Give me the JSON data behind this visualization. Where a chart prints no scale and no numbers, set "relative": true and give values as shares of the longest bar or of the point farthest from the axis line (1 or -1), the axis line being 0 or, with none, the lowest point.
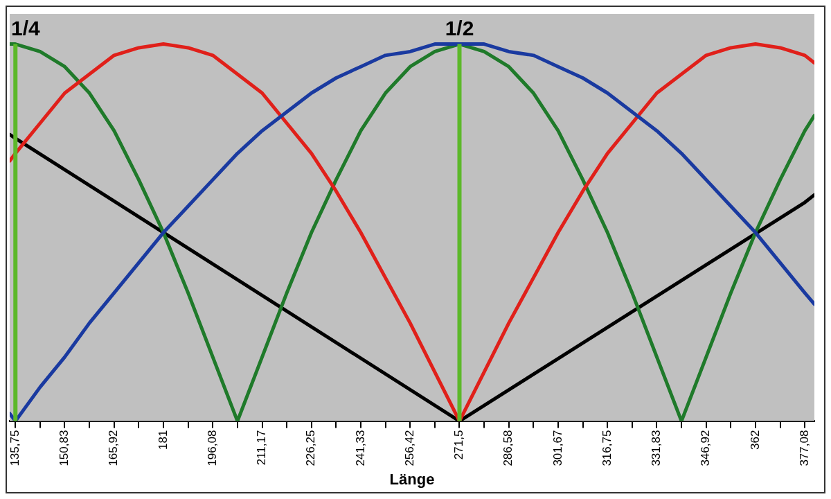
{
  "chart_data": {
    "type": "line",
    "xlabel": "Länge",
    "relative": true,
    "grid": false,
    "legend": false,
    "marker": "none",
    "line_style": "solid",
    "xlim": [
      134,
      380
    ],
    "xticks": [
      {
        "value": 135.75,
        "label": "135,75"
      },
      {
        "value": 143.29,
        "label": null
      },
      {
        "value": 150.83,
        "label": "150,83"
      },
      {
        "value": 158.37,
        "label": null
      },
      {
        "value": 165.92,
        "label": "165,92"
      },
      {
        "value": 173.46,
        "label": null
      },
      181,
      {
        "value": 188.54,
        "label": null
      },
      {
        "value": 196.08,
        "label": "196,08"
      },
      {
        "value": 203.63,
        "label": null
      },
      {
        "value": 211.17,
        "label": "211,17"
      },
      {
        "value": 218.71,
        "label": null
      },
      {
        "value": 226.25,
        "label": "226,25"
      },
      {
        "value": 233.79,
        "label": null
      },
      {
        "value": 241.33,
        "label": "241,33"
      },
      {
        "value": 248.87,
        "label": null
      },
      {
        "value": 256.42,
        "label": "256,42"
      },
      {
        "value": 263.96,
        "label": null
      },
      {
        "value": 271.5,
        "label": "271,5"
      },
      {
        "value": 279.04,
        "label": null
      },
      {
        "value": 286.58,
        "label": "286,58"
      },
      {
        "value": 294.12,
        "label": null
      },
      {
        "value": 301.67,
        "label": "301,67"
      },
      {
        "value": 309.21,
        "label": null
      },
      {
        "value": 316.75,
        "label": "316,75"
      },
      {
        "value": 324.29,
        "label": null
      },
      {
        "value": 331.83,
        "label": "331,83"
      },
      {
        "value": 339.37,
        "label": null
      },
      {
        "value": 346.92,
        "label": "346,92"
      },
      {
        "value": 354.46,
        "label": null
      },
      362,
      {
        "value": 369.54,
        "label": null
      },
      {
        "value": 377.08,
        "label": "377,08"
      }
    ],
    "x": [
      134,
      135.75,
      143.29,
      150.83,
      158.37,
      165.92,
      173.46,
      181,
      188.54,
      196.08,
      203.63,
      211.17,
      218.71,
      226.25,
      233.79,
      241.33,
      248.87,
      256.42,
      263.96,
      271.5,
      279.04,
      286.58,
      294.12,
      301.67,
      309.21,
      316.75,
      324.29,
      331.83,
      339.37,
      346.92,
      354.46,
      362,
      369.54,
      377.08,
      380
    ],
    "series": [
      {
        "color": "#1a3aa0",
        "values": [
          0.02,
          0,
          0.09,
          0.17,
          0.26,
          0.34,
          0.42,
          0.5,
          0.57,
          0.64,
          0.71,
          0.77,
          0.82,
          0.87,
          0.91,
          0.94,
          0.97,
          0.98,
          1,
          1,
          1,
          0.98,
          0.97,
          0.94,
          0.91,
          0.87,
          0.82,
          0.77,
          0.71,
          0.64,
          0.57,
          0.5,
          0.42,
          0.34,
          0.31
        ]
      },
      {
        "color": "#e0201a",
        "values": [
          0.69,
          0.71,
          0.79,
          0.87,
          0.92,
          0.97,
          0.99,
          1,
          0.99,
          0.97,
          0.92,
          0.87,
          0.79,
          0.71,
          0.61,
          0.5,
          0.38,
          0.26,
          0.13,
          0,
          0.13,
          0.26,
          0.38,
          0.5,
          0.61,
          0.71,
          0.79,
          0.87,
          0.92,
          0.97,
          0.99,
          1,
          0.99,
          0.97,
          0.95
        ]
      },
      {
        "color": "#1f7a2a",
        "values": [
          1,
          1,
          0.98,
          0.94,
          0.87,
          0.77,
          0.64,
          0.5,
          0.34,
          0.17,
          0,
          0.17,
          0.34,
          0.5,
          0.64,
          0.77,
          0.87,
          0.94,
          0.98,
          1,
          0.98,
          0.94,
          0.87,
          0.77,
          0.64,
          0.5,
          0.34,
          0.17,
          0,
          0.17,
          0.34,
          0.5,
          0.64,
          0.77,
          0.81
        ]
      },
      {
        "color": "#000000",
        "x": [
          134,
          135.75,
          271.5,
          377.08,
          380
        ],
        "values": [
          0.76,
          0.75,
          0,
          0.58,
          0.6
        ]
      }
    ],
    "ref_lines": [
      {
        "axis": "x",
        "value": 135.75,
        "color": "#5cb82a"
      },
      {
        "axis": "x",
        "value": 271.5,
        "color": "#5cb82a"
      }
    ],
    "annotations": [
      {
        "text": "1/4",
        "x": 135.75,
        "y": 1
      },
      {
        "text": "1/2",
        "x": 271.5,
        "y": 1
      }
    ]
  }
}
